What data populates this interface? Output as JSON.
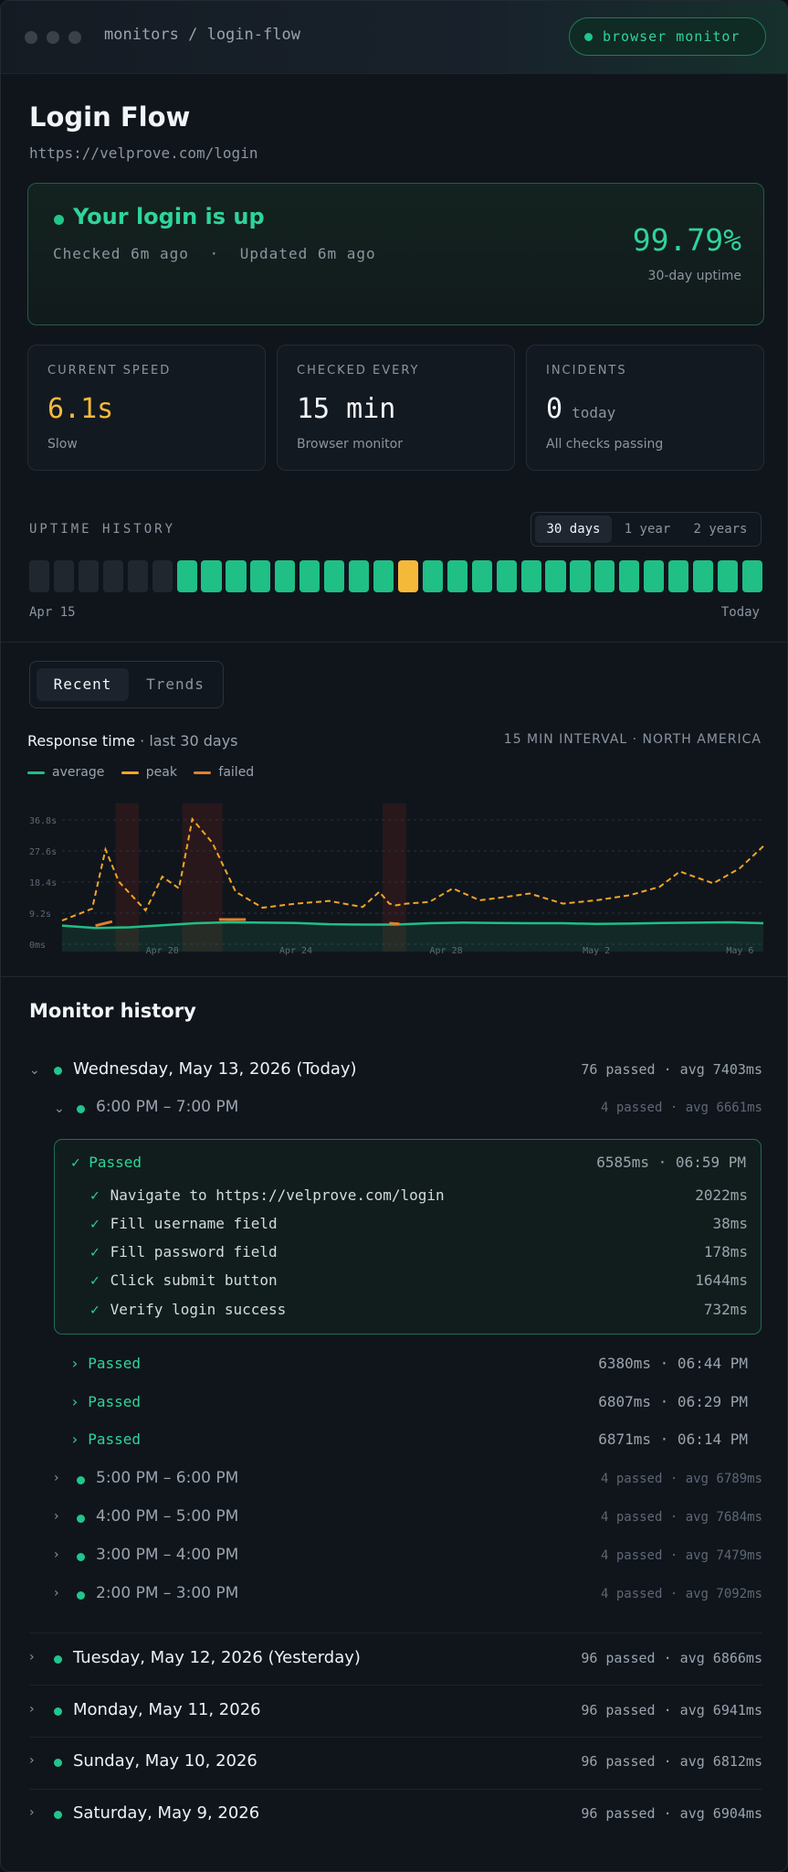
{
  "window": {
    "breadcrumb": "monitors / login-flow",
    "badge": "browser monitor"
  },
  "monitor": {
    "title": "Login Flow",
    "url": "https://velprove.com/login"
  },
  "status": {
    "headline": "Your login is up",
    "checked": "Checked 6m ago",
    "sep": "·",
    "updated": "Updated 6m ago",
    "uptime": "99.79%",
    "uptime_label": "30-day uptime"
  },
  "stats": [
    {
      "label": "CURRENT SPEED",
      "value": "6.1s",
      "suffix": "",
      "sub": "Slow"
    },
    {
      "label": "CHECKED EVERY",
      "value": "15 min",
      "suffix": "",
      "sub": "Browser monitor"
    },
    {
      "label": "INCIDENTS",
      "value": "0",
      "suffix": "today",
      "sub": "All checks passing"
    }
  ],
  "uptime": {
    "label": "UPTIME HISTORY",
    "ranges": [
      "30 days",
      "1 year",
      "2 years"
    ],
    "selected_range": "30 days",
    "start_label": "Apr 15",
    "end_label": "Today",
    "days": [
      "none",
      "none",
      "none",
      "none",
      "none",
      "none",
      "up",
      "up",
      "up",
      "up",
      "up",
      "up",
      "up",
      "up",
      "up",
      "degraded",
      "up",
      "up",
      "up",
      "up",
      "up",
      "up",
      "up",
      "up",
      "up",
      "up",
      "up",
      "up",
      "up",
      "up"
    ],
    "colors": {
      "up": "#1fbf86",
      "degraded": "#f5b93a",
      "none": "#20272f"
    }
  },
  "tabs": {
    "recent": "Recent",
    "trends": "Trends",
    "active": "Recent"
  },
  "chart_header": {
    "title": "Response time",
    "subtitle": "· last 30 days",
    "meta": "15 MIN INTERVAL · NORTH AMERICA"
  },
  "chart_data": {
    "type": "line",
    "title": "Response time",
    "x_ticks": [
      "Apr 20",
      "Apr 24",
      "Apr 28",
      "May 2",
      "May 6"
    ],
    "x_tick_positions": [
      3,
      7,
      11.5,
      16,
      20.3
    ],
    "y_ticks": [
      "36.8s",
      "27.6s",
      "18.4s",
      "9.2s",
      "0ms"
    ],
    "y_tick_values": [
      36.8,
      27.6,
      18.4,
      9.2,
      0
    ],
    "ylim": [
      0,
      40
    ],
    "xlim": [
      0,
      21
    ],
    "series": [
      {
        "name": "average",
        "color": "#1fbf86",
        "x": [
          0,
          1,
          2,
          3,
          4,
          5,
          6,
          7,
          8,
          9,
          10,
          11,
          12,
          13,
          14,
          15,
          16,
          17,
          18,
          19,
          20,
          21
        ],
        "values": [
          5.5,
          4.8,
          5.0,
          5.6,
          6.2,
          6.5,
          6.4,
          6.3,
          5.9,
          5.8,
          5.8,
          6.2,
          6.4,
          6.3,
          6.2,
          6.2,
          6.0,
          6.1,
          6.3,
          6.4,
          6.5,
          6.2
        ]
      },
      {
        "name": "peak",
        "color": "#f5a524",
        "x": [
          0,
          0.9,
          1.3,
          1.7,
          2.5,
          3.0,
          3.5,
          3.9,
          4.5,
          5.2,
          6.0,
          7.0,
          8.0,
          9.0,
          9.5,
          9.8,
          10.0,
          10.3,
          11.0,
          11.7,
          12.5,
          13.3,
          14.0,
          15.0,
          16.0,
          17.0,
          17.9,
          18.5,
          19.5,
          20.3,
          21.0
        ],
        "values": [
          7.0,
          10.5,
          28.0,
          18.5,
          10.0,
          20.0,
          16.5,
          37.0,
          30.0,
          15.5,
          10.8,
          12.0,
          12.8,
          11.0,
          15.5,
          12.0,
          11.5,
          12.0,
          12.5,
          16.5,
          13.0,
          14.0,
          15.0,
          12.0,
          13.0,
          14.5,
          17.0,
          21.5,
          18.0,
          22.5,
          29.0
        ]
      },
      {
        "name": "failed",
        "color": "#e0812a",
        "x": [
          1.0,
          1.5,
          4.7,
          5.5,
          9.8,
          10.1
        ],
        "values": [
          5.5,
          6.7,
          7.3,
          7.3,
          6.2,
          6.0
        ]
      }
    ],
    "incident_bands": [
      [
        1.6,
        2.3
      ],
      [
        3.6,
        4.8
      ],
      [
        9.6,
        10.3
      ]
    ],
    "grid": true
  },
  "history": {
    "title": "Monitor history",
    "today": {
      "label": "Wednesday, May 13, 2026 (Today)",
      "meta": "76 passed · avg 7403ms"
    },
    "open_hour": {
      "label": "6:00 PM – 7:00 PM",
      "meta": "4 passed · avg 6661ms"
    },
    "open_run": {
      "status": "✓ Passed",
      "meta": "6585ms · 06:59 PM",
      "steps": [
        {
          "name": "Navigate to https://velprove.com/login",
          "ms": "2022ms"
        },
        {
          "name": "Fill username field",
          "ms": "38ms"
        },
        {
          "name": "Fill password field",
          "ms": "178ms"
        },
        {
          "name": "Click submit button",
          "ms": "1644ms"
        },
        {
          "name": "Verify login success",
          "ms": "732ms"
        }
      ]
    },
    "runs": [
      {
        "status": "› Passed",
        "meta": "6380ms · 06:44 PM"
      },
      {
        "status": "› Passed",
        "meta": "6807ms · 06:29 PM"
      },
      {
        "status": "› Passed",
        "meta": "6871ms · 06:14 PM"
      }
    ],
    "hours": [
      {
        "label": "5:00 PM – 6:00 PM",
        "meta": "4 passed · avg 6789ms"
      },
      {
        "label": "4:00 PM – 5:00 PM",
        "meta": "4 passed · avg 7684ms"
      },
      {
        "label": "3:00 PM – 4:00 PM",
        "meta": "4 passed · avg 7479ms"
      },
      {
        "label": "2:00 PM – 3:00 PM",
        "meta": "4 passed · avg 7092ms"
      }
    ],
    "days": [
      {
        "label": "Tuesday, May 12, 2026 (Yesterday)",
        "meta": "96 passed · avg 6866ms"
      },
      {
        "label": "Monday, May 11, 2026",
        "meta": "96 passed · avg 6941ms"
      },
      {
        "label": "Sunday, May 10, 2026",
        "meta": "96 passed · avg 6812ms"
      },
      {
        "label": "Saturday, May 9, 2026",
        "meta": "96 passed · avg 6904ms"
      }
    ]
  }
}
